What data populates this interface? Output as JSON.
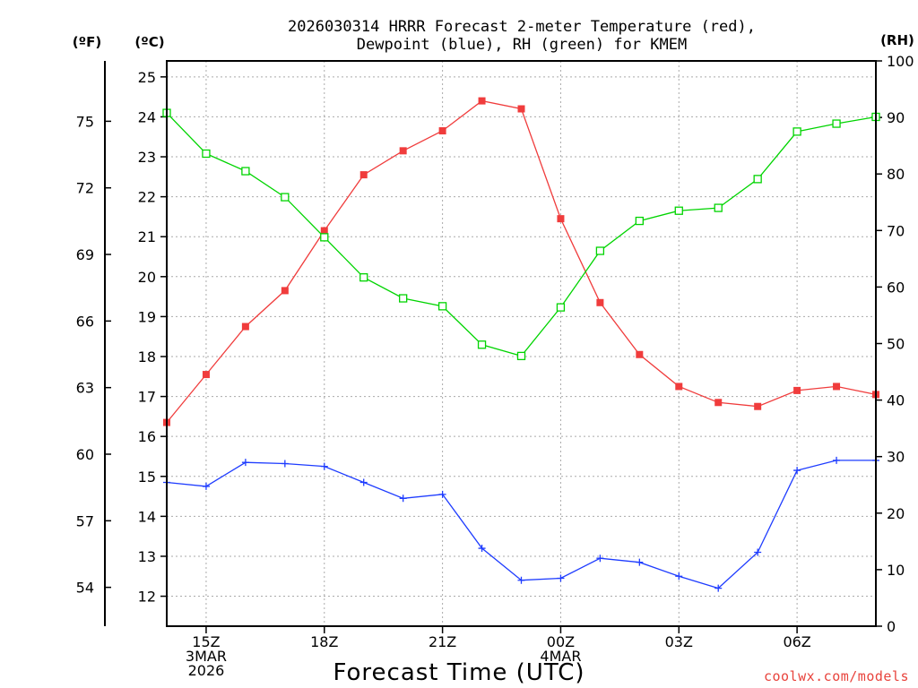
{
  "chart_data": {
    "type": "line",
    "title_lines": [
      "2026030314 HRRR Forecast 2-meter Temperature (red),",
      "Dewpoint (blue), RH (green) for KMEM"
    ],
    "xlabel": "Forecast Time (UTC)",
    "credit": "coolwx.com/models",
    "units": {
      "fahrenheit": "(ºF)",
      "celsius": "(ºC)",
      "rh": "(RH)"
    },
    "x_range_hours": [
      0,
      18
    ],
    "x_ticks": [
      {
        "hour": 1,
        "lines": [
          "15Z",
          "3MAR",
          "2026"
        ]
      },
      {
        "hour": 4,
        "lines": [
          "18Z"
        ]
      },
      {
        "hour": 7,
        "lines": [
          "21Z"
        ]
      },
      {
        "hour": 10,
        "lines": [
          "00Z",
          "4MAR"
        ]
      },
      {
        "hour": 13,
        "lines": [
          "03Z"
        ]
      },
      {
        "hour": 16,
        "lines": [
          "06Z"
        ]
      }
    ],
    "celsius_axis": {
      "range": [
        11.25,
        25.4
      ],
      "ticks": [
        12,
        13,
        14,
        15,
        16,
        17,
        18,
        19,
        20,
        21,
        22,
        23,
        24,
        25
      ]
    },
    "fahrenheit_ticks": [
      54,
      57,
      60,
      63,
      66,
      69,
      72,
      75
    ],
    "rh_axis": {
      "range": [
        0,
        100
      ],
      "ticks": [
        0,
        10,
        20,
        30,
        40,
        50,
        60,
        70,
        80,
        90,
        100
      ]
    },
    "series": [
      {
        "name": "2-meter Temperature",
        "color": "#f03c3c",
        "axis": "celsius",
        "marker": "filled-square",
        "hours": [
          0,
          1,
          2,
          3,
          4,
          5,
          6,
          7,
          8,
          9,
          10,
          11,
          12,
          13,
          14,
          15,
          16,
          17,
          18
        ],
        "values": [
          16.35,
          17.55,
          18.75,
          19.65,
          21.15,
          22.55,
          23.15,
          23.65,
          24.4,
          24.2,
          21.45,
          19.35,
          18.05,
          17.25,
          16.85,
          16.75,
          17.15,
          17.25,
          17.05
        ]
      },
      {
        "name": "Dewpoint",
        "color": "#1e3cff",
        "axis": "celsius",
        "marker": "plus",
        "hours": [
          0,
          1,
          2,
          3,
          4,
          5,
          6,
          7,
          8,
          9,
          10,
          11,
          12,
          13,
          14,
          15,
          16,
          17,
          18
        ],
        "values": [
          14.85,
          14.75,
          15.35,
          15.32,
          15.25,
          14.85,
          14.45,
          14.55,
          13.2,
          12.4,
          12.45,
          12.95,
          12.85,
          12.5,
          12.2,
          13.1,
          15.15,
          15.4,
          15.4
        ]
      },
      {
        "name": "RH",
        "color": "#00d400",
        "axis": "rh",
        "marker": "open-square",
        "hours": [
          0,
          1,
          2,
          3,
          4,
          5,
          6,
          7,
          8,
          9,
          10,
          11,
          12,
          13,
          14,
          15,
          16,
          17,
          18
        ],
        "values": [
          90.8,
          83.6,
          80.5,
          75.9,
          68.8,
          61.7,
          58.0,
          56.6,
          49.8,
          47.8,
          56.4,
          66.4,
          71.7,
          73.5,
          74.0,
          79.1,
          87.5,
          88.9,
          90.1
        ]
      }
    ]
  }
}
